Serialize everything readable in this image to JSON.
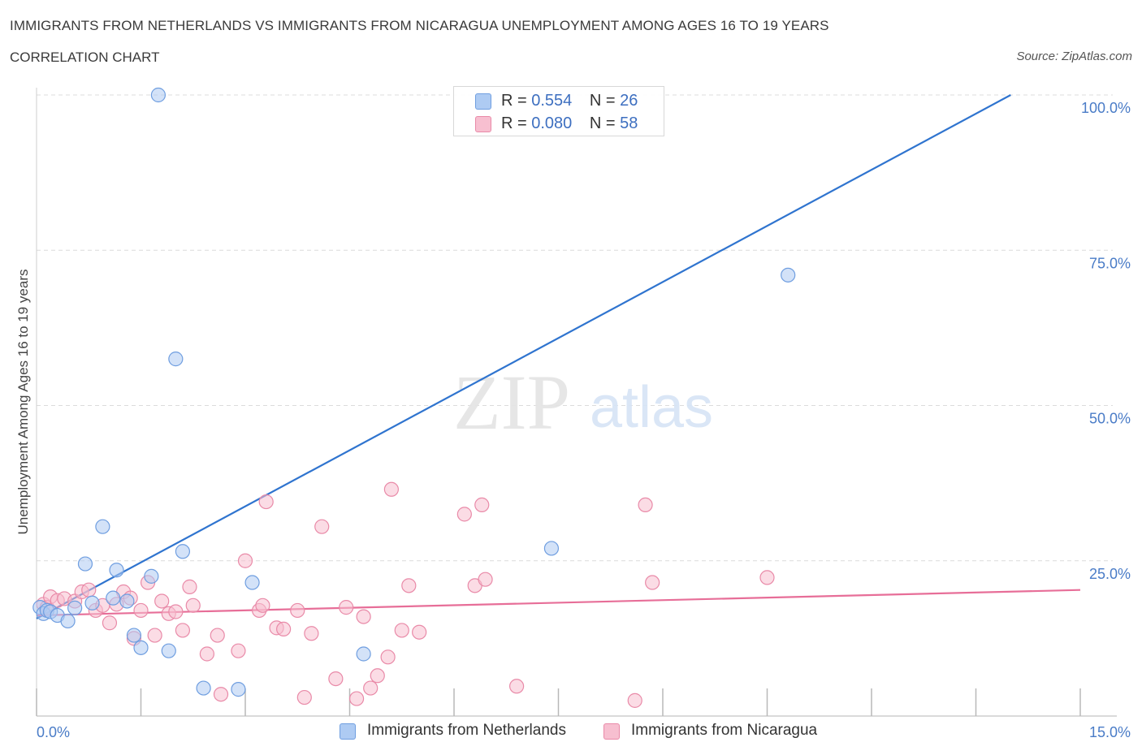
{
  "title": "IMMIGRANTS FROM NETHERLANDS VS IMMIGRANTS FROM NICARAGUA UNEMPLOYMENT AMONG AGES 16 TO 19 YEARS",
  "subtitle": "CORRELATION CHART",
  "source": "Source: ZipAtlas.com",
  "watermark": {
    "zip": "ZIP",
    "atlas": "atlas"
  },
  "colors": {
    "netherlands_fill": "#aecbf3",
    "netherlands_stroke": "#6f9ee0",
    "netherlands_line": "#2f74cf",
    "nicaragua_fill": "#f7bfd0",
    "nicaragua_stroke": "#e98aa8",
    "nicaragua_line": "#e76e98"
  },
  "legend": {
    "rows": [
      {
        "r_label": "R = ",
        "r_value": "0.554",
        "n_label": "N = ",
        "n_value": "26"
      },
      {
        "r_label": "R = ",
        "r_value": "0.080",
        "n_label": "N = ",
        "n_value": "58"
      }
    ]
  },
  "bottom_legend": {
    "netherlands": "Immigrants from Netherlands",
    "nicaragua": "Immigrants from Nicaragua"
  },
  "chart_data": {
    "type": "scatter",
    "title": "IMMIGRANTS FROM NETHERLANDS VS IMMIGRANTS FROM NICARAGUA UNEMPLOYMENT AMONG AGES 16 TO 19 YEARS",
    "xlabel": "",
    "ylabel": "Unemployment Among Ages 16 to 19 years",
    "xlim": [
      0,
      15
    ],
    "ylim": [
      0,
      100
    ],
    "x_tick_labels": [
      "0.0%",
      "15.0%"
    ],
    "y_ticks": [
      25,
      50,
      75,
      100
    ],
    "y_tick_labels": [
      "25.0%",
      "50.0%",
      "75.0%",
      "100.0%"
    ],
    "grid": true,
    "series": [
      {
        "name": "Immigrants from Netherlands",
        "R": 0.554,
        "N": 26,
        "trend": {
          "x": [
            0.0,
            14.0
          ],
          "y": [
            15.7,
            100.0
          ]
        },
        "points": [
          {
            "x": 0.05,
            "y": 17.5
          },
          {
            "x": 0.1,
            "y": 16.5
          },
          {
            "x": 0.15,
            "y": 17.0
          },
          {
            "x": 0.2,
            "y": 16.8
          },
          {
            "x": 0.3,
            "y": 16.2
          },
          {
            "x": 0.45,
            "y": 15.3
          },
          {
            "x": 0.55,
            "y": 17.4
          },
          {
            "x": 0.7,
            "y": 24.5
          },
          {
            "x": 0.8,
            "y": 18.2
          },
          {
            "x": 0.95,
            "y": 30.5
          },
          {
            "x": 1.1,
            "y": 19.0
          },
          {
            "x": 1.15,
            "y": 23.5
          },
          {
            "x": 1.3,
            "y": 18.5
          },
          {
            "x": 1.4,
            "y": 13.0
          },
          {
            "x": 1.5,
            "y": 11.0
          },
          {
            "x": 1.65,
            "y": 22.5
          },
          {
            "x": 1.75,
            "y": 100.0
          },
          {
            "x": 1.9,
            "y": 10.5
          },
          {
            "x": 2.0,
            "y": 57.5
          },
          {
            "x": 2.1,
            "y": 26.5
          },
          {
            "x": 2.4,
            "y": 4.5
          },
          {
            "x": 2.9,
            "y": 4.3
          },
          {
            "x": 3.1,
            "y": 21.5
          },
          {
            "x": 4.7,
            "y": 10.0
          },
          {
            "x": 7.4,
            "y": 27.0
          },
          {
            "x": 10.8,
            "y": 71.0
          }
        ]
      },
      {
        "name": "Immigrants from Nicaragua",
        "R": 0.08,
        "N": 58,
        "trend": {
          "x": [
            0.0,
            15.0
          ],
          "y": [
            16.2,
            20.3
          ]
        },
        "points": [
          {
            "x": 0.1,
            "y": 18.0
          },
          {
            "x": 0.15,
            "y": 17.5
          },
          {
            "x": 0.2,
            "y": 19.2
          },
          {
            "x": 0.3,
            "y": 18.6
          },
          {
            "x": 0.4,
            "y": 18.9
          },
          {
            "x": 0.55,
            "y": 18.5
          },
          {
            "x": 0.65,
            "y": 20.0
          },
          {
            "x": 0.75,
            "y": 20.3
          },
          {
            "x": 0.85,
            "y": 17.0
          },
          {
            "x": 0.95,
            "y": 17.8
          },
          {
            "x": 1.05,
            "y": 15.0
          },
          {
            "x": 1.15,
            "y": 18.0
          },
          {
            "x": 1.25,
            "y": 20.0
          },
          {
            "x": 1.35,
            "y": 19.0
          },
          {
            "x": 1.4,
            "y": 12.5
          },
          {
            "x": 1.5,
            "y": 17.0
          },
          {
            "x": 1.6,
            "y": 21.5
          },
          {
            "x": 1.7,
            "y": 13.0
          },
          {
            "x": 1.8,
            "y": 18.5
          },
          {
            "x": 1.9,
            "y": 16.5
          },
          {
            "x": 2.0,
            "y": 16.8
          },
          {
            "x": 2.1,
            "y": 13.8
          },
          {
            "x": 2.2,
            "y": 20.8
          },
          {
            "x": 2.25,
            "y": 17.8
          },
          {
            "x": 2.45,
            "y": 10.0
          },
          {
            "x": 2.6,
            "y": 13.0
          },
          {
            "x": 2.65,
            "y": 3.5
          },
          {
            "x": 2.9,
            "y": 10.5
          },
          {
            "x": 3.0,
            "y": 25.0
          },
          {
            "x": 3.2,
            "y": 17.0
          },
          {
            "x": 3.25,
            "y": 17.8
          },
          {
            "x": 3.3,
            "y": 34.5
          },
          {
            "x": 3.45,
            "y": 14.2
          },
          {
            "x": 3.55,
            "y": 14.0
          },
          {
            "x": 3.75,
            "y": 17.0
          },
          {
            "x": 3.85,
            "y": 3.0
          },
          {
            "x": 3.95,
            "y": 13.3
          },
          {
            "x": 4.1,
            "y": 30.5
          },
          {
            "x": 4.3,
            "y": 6.0
          },
          {
            "x": 4.45,
            "y": 17.5
          },
          {
            "x": 4.6,
            "y": 2.8
          },
          {
            "x": 4.7,
            "y": 16.0
          },
          {
            "x": 4.8,
            "y": 4.5
          },
          {
            "x": 4.9,
            "y": 6.5
          },
          {
            "x": 5.05,
            "y": 9.5
          },
          {
            "x": 5.1,
            "y": 36.5
          },
          {
            "x": 5.25,
            "y": 13.8
          },
          {
            "x": 5.35,
            "y": 21.0
          },
          {
            "x": 5.5,
            "y": 13.5
          },
          {
            "x": 6.15,
            "y": 32.5
          },
          {
            "x": 6.3,
            "y": 21.0
          },
          {
            "x": 6.4,
            "y": 34.0
          },
          {
            "x": 6.45,
            "y": 22.0
          },
          {
            "x": 6.9,
            "y": 4.8
          },
          {
            "x": 8.6,
            "y": 2.5
          },
          {
            "x": 8.75,
            "y": 34.0
          },
          {
            "x": 8.85,
            "y": 21.5
          },
          {
            "x": 10.5,
            "y": 22.3
          }
        ]
      }
    ]
  }
}
